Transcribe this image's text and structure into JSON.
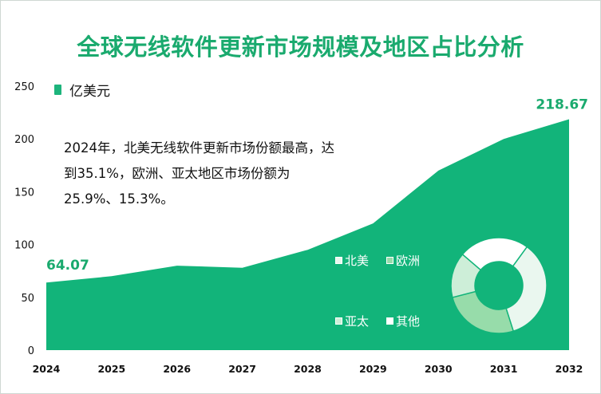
{
  "title": "全球无线软件更新市场规模及地区占比分析",
  "note": "2024年，北美无线软件更新市场份额最高，达到35.1%，欧洲、亚太地区市场份额为25.9%、15.3%。",
  "colors": {
    "title": "#1aaa6e",
    "area": "#12b47a",
    "label": "#1aaa6e",
    "pie": [
      "#eaf7ef",
      "#97dcaa",
      "#cdeed8",
      "#ffffff"
    ]
  },
  "chart_data": [
    {
      "type": "area",
      "legend": "亿美元",
      "legend_position": "top-left",
      "x": [
        "2024",
        "2025",
        "2026",
        "2027",
        "2028",
        "2029",
        "2030",
        "2031",
        "2032"
      ],
      "series": [
        {
          "name": "亿美元",
          "values": [
            64.07,
            70,
            80,
            78,
            95,
            120,
            170,
            200,
            218.67
          ]
        }
      ],
      "ylim": [
        0,
        250
      ],
      "yticks": [
        "0",
        "50",
        "100",
        "150",
        "200",
        "250"
      ],
      "labels": {
        "start": "64.07",
        "end": "218.67"
      },
      "grid": false
    },
    {
      "type": "pie",
      "donut": true,
      "categories": [
        "北美",
        "欧洲",
        "亚太",
        "其他"
      ],
      "values": [
        35.1,
        25.9,
        15.3,
        23.7
      ]
    }
  ]
}
